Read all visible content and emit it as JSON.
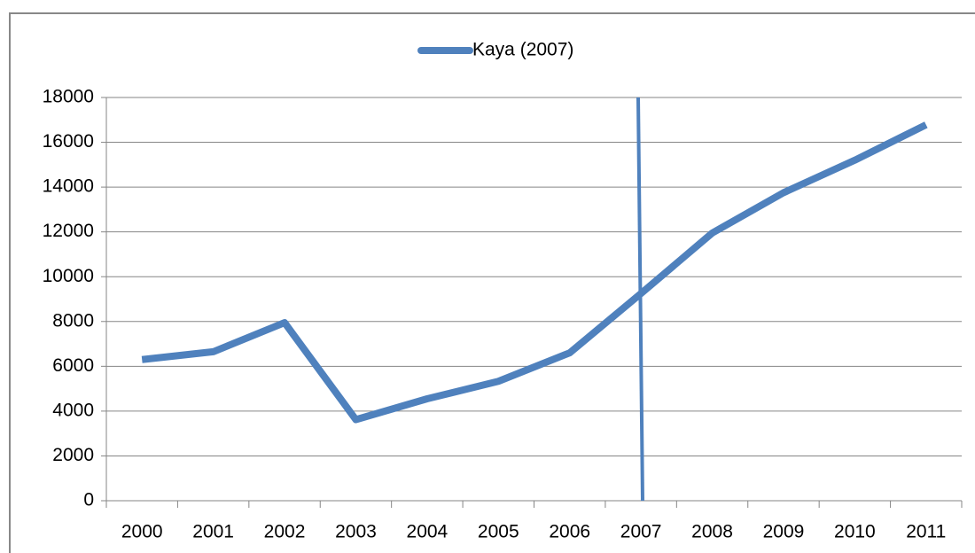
{
  "chart_data": {
    "type": "line",
    "categories": [
      "2000",
      "2001",
      "2002",
      "2003",
      "2004",
      "2005",
      "2006",
      "2007",
      "2008",
      "2009",
      "2010",
      "2011"
    ],
    "series": [
      {
        "name": "Kaya (2007)",
        "color": "#4f81bd",
        "values": [
          6300,
          6650,
          7950,
          3620,
          4550,
          5330,
          6600,
          9250,
          11950,
          13750,
          15200,
          16780
        ]
      }
    ],
    "ylim": [
      0,
      18000
    ],
    "yticks": [
      0,
      2000,
      4000,
      6000,
      8000,
      10000,
      12000,
      14000,
      16000,
      18000
    ],
    "grid": true,
    "legend": "top"
  }
}
